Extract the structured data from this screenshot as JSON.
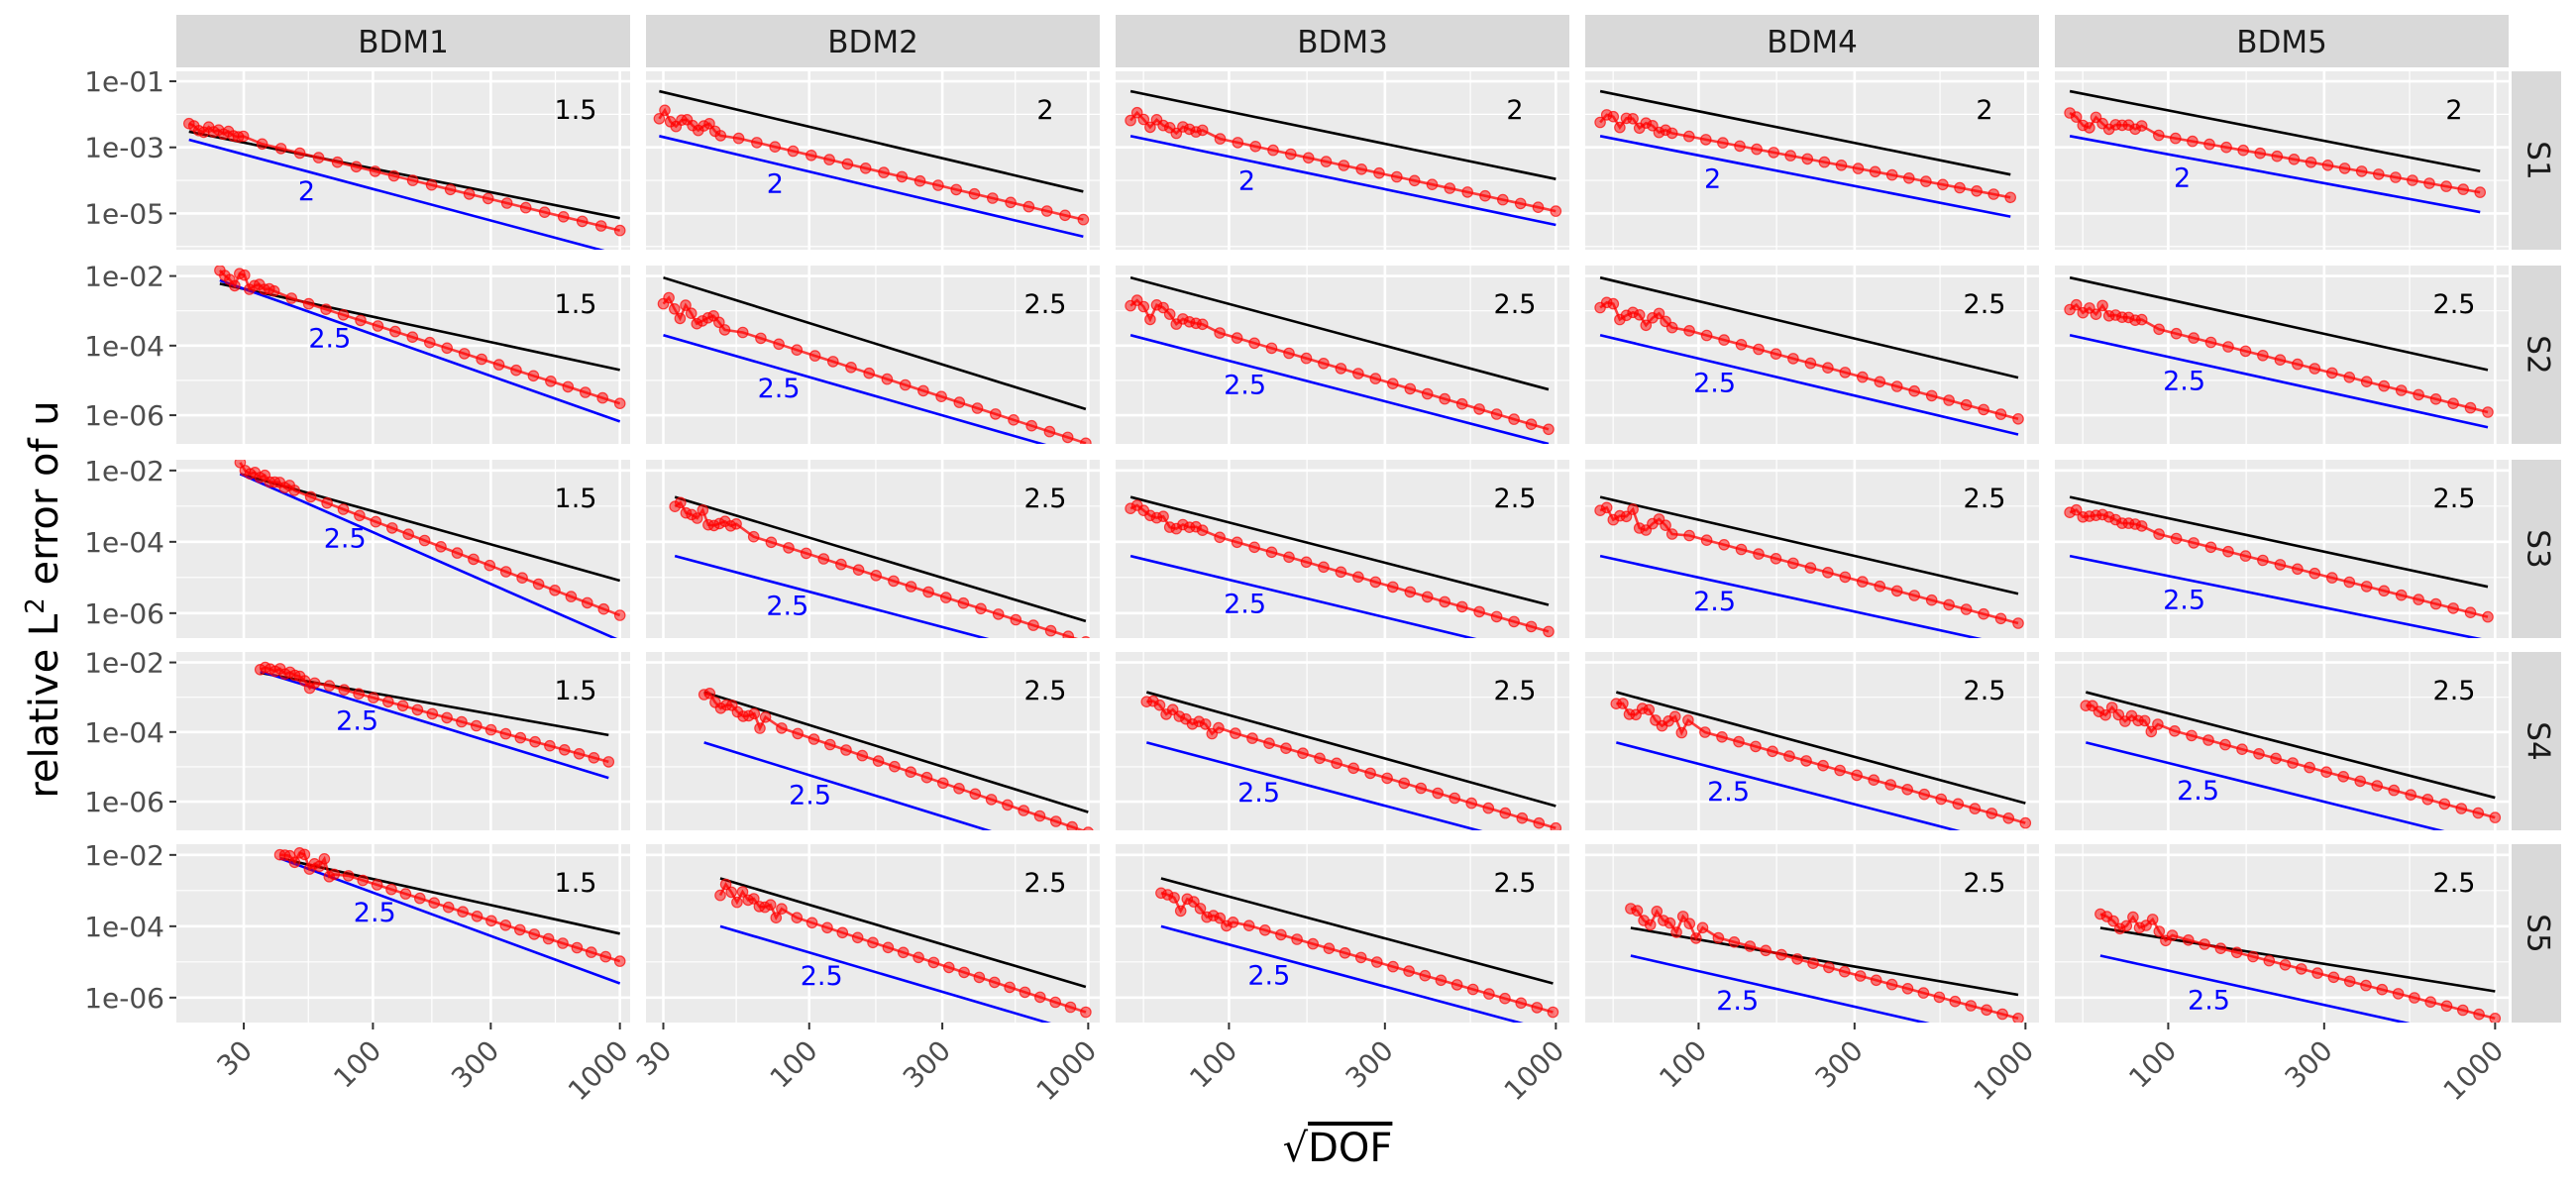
{
  "chart_data": {
    "type": "line",
    "layout": "facet_grid",
    "x_scale": "log10",
    "y_scale": "log10",
    "xlabel_parts": {
      "radical": "√",
      "text": "DOF"
    },
    "ylabel_parts": {
      "before": "relative L",
      "sup": "2",
      "after": " error of u"
    },
    "col_strips": [
      "BDM1",
      "BDM2",
      "BDM3",
      "BDM4",
      "BDM5"
    ],
    "row_strips": [
      "S1",
      "S2",
      "S3",
      "S4",
      "S5"
    ],
    "x_ticks": [
      {
        "value": 30,
        "label": "30"
      },
      {
        "value": 100,
        "label": "100"
      },
      {
        "value": 300,
        "label": "300"
      },
      {
        "value": 1000,
        "label": "1000"
      }
    ],
    "x_ranges_by_col": [
      [
        16,
        1100
      ],
      [
        26,
        1100
      ],
      [
        45,
        1100
      ],
      [
        45,
        1100
      ],
      [
        45,
        1100
      ]
    ],
    "y_ticks_by_row": [
      [
        {
          "value": 0.1,
          "label": "1e-01"
        },
        {
          "value": 0.001,
          "label": "1e-03"
        },
        {
          "value": 1e-05,
          "label": "1e-05"
        }
      ],
      [
        {
          "value": 0.01,
          "label": "1e-02"
        },
        {
          "value": 0.0001,
          "label": "1e-04"
        },
        {
          "value": 1e-06,
          "label": "1e-06"
        }
      ],
      [
        {
          "value": 0.01,
          "label": "1e-02"
        },
        {
          "value": 0.0001,
          "label": "1e-04"
        },
        {
          "value": 1e-06,
          "label": "1e-06"
        }
      ],
      [
        {
          "value": 0.01,
          "label": "1e-02"
        },
        {
          "value": 0.0001,
          "label": "1e-04"
        },
        {
          "value": 1e-06,
          "label": "1e-06"
        }
      ],
      [
        {
          "value": 0.01,
          "label": "1e-02"
        },
        {
          "value": 0.0001,
          "label": "1e-04"
        },
        {
          "value": 1e-06,
          "label": "1e-06"
        }
      ]
    ],
    "y_ranges_by_row": [
      [
        8e-07,
        0.2
      ],
      [
        1.5e-07,
        0.02
      ],
      [
        2e-07,
        0.02
      ],
      [
        1.5e-07,
        0.02
      ],
      [
        2e-07,
        0.02
      ]
    ],
    "series": [
      {
        "name": "relative L2 error of u",
        "color": "#ff0000",
        "marker": "circle",
        "alpha": 0.55
      },
      {
        "name": "reference slope (upper)",
        "color": "#000000"
      },
      {
        "name": "reference slope (lower)",
        "color": "#0000ff"
      }
    ],
    "panels": [
      {
        "row": 0,
        "col": 0,
        "error": {
          "x_start": 18,
          "x_end": 1000,
          "y_start": 0.005,
          "y_end": 3.5e-06
        },
        "ref_upper": {
          "x_start": 18,
          "x_end": 1000,
          "y_start": 0.003,
          "y_end": 7.2e-06,
          "label": "1.5"
        },
        "ref_lower": {
          "x_start": 18,
          "x_end": 1000,
          "y_start": 0.0017,
          "y_end": 5.5e-07,
          "label": "2"
        }
      },
      {
        "row": 0,
        "col": 1,
        "error": {
          "x_start": 29,
          "x_end": 960,
          "y_start": 0.008,
          "y_end": 7.5e-06
        },
        "ref_upper": {
          "x_start": 29,
          "x_end": 960,
          "y_start": 0.05,
          "y_end": 4.6e-05,
          "label": "2"
        },
        "ref_lower": {
          "x_start": 29,
          "x_end": 960,
          "y_start": 0.0022,
          "y_end": 2e-06,
          "label": "2"
        }
      },
      {
        "row": 0,
        "col": 2,
        "error": {
          "x_start": 50,
          "x_end": 1000,
          "y_start": 0.008,
          "y_end": 1.35e-05
        },
        "ref_upper": {
          "x_start": 50,
          "x_end": 1000,
          "y_start": 0.05,
          "y_end": 0.00011,
          "label": "2"
        },
        "ref_lower": {
          "x_start": 50,
          "x_end": 1000,
          "y_start": 0.0022,
          "y_end": 4.5e-06,
          "label": "2"
        }
      },
      {
        "row": 0,
        "col": 3,
        "error": {
          "x_start": 50,
          "x_end": 900,
          "y_start": 0.008,
          "y_end": 3.5e-05
        },
        "ref_upper": {
          "x_start": 50,
          "x_end": 900,
          "y_start": 0.05,
          "y_end": 0.00015,
          "label": "2"
        },
        "ref_lower": {
          "x_start": 50,
          "x_end": 900,
          "y_start": 0.0022,
          "y_end": 8e-06,
          "label": "2"
        }
      },
      {
        "row": 0,
        "col": 4,
        "error": {
          "x_start": 50,
          "x_end": 900,
          "y_start": 0.008,
          "y_end": 5e-05
        },
        "ref_upper": {
          "x_start": 50,
          "x_end": 900,
          "y_start": 0.05,
          "y_end": 0.00019,
          "label": "2"
        },
        "ref_lower": {
          "x_start": 50,
          "x_end": 900,
          "y_start": 0.0022,
          "y_end": 1.1e-05,
          "label": "2"
        }
      },
      {
        "row": 1,
        "col": 0,
        "error": {
          "x_start": 24,
          "x_end": 1000,
          "y_start": 0.012,
          "y_end": 2.5e-06
        },
        "ref_upper": {
          "x_start": 24,
          "x_end": 1000,
          "y_start": 0.006,
          "y_end": 2e-05,
          "label": "1.5"
        },
        "ref_lower": {
          "x_start": 24,
          "x_end": 1000,
          "y_start": 0.0075,
          "y_end": 6.6e-07,
          "label": "2.5"
        }
      },
      {
        "row": 1,
        "col": 1,
        "error": {
          "x_start": 30,
          "x_end": 980,
          "y_start": 0.0015,
          "y_end": 1.8e-07
        },
        "ref_upper": {
          "x_start": 30,
          "x_end": 980,
          "y_start": 0.009,
          "y_end": 1.5e-06,
          "label": "2.5"
        },
        "ref_lower": {
          "x_start": 30,
          "x_end": 980,
          "y_start": 0.0002,
          "y_end": 6.5e-08,
          "label": "2.5"
        }
      },
      {
        "row": 1,
        "col": 2,
        "error": {
          "x_start": 50,
          "x_end": 950,
          "y_start": 0.0015,
          "y_end": 4.5e-07
        },
        "ref_upper": {
          "x_start": 50,
          "x_end": 950,
          "y_start": 0.009,
          "y_end": 5.5e-06,
          "label": "2.5"
        },
        "ref_lower": {
          "x_start": 50,
          "x_end": 950,
          "y_start": 0.0002,
          "y_end": 1.5e-07,
          "label": "2.5"
        }
      },
      {
        "row": 1,
        "col": 3,
        "error": {
          "x_start": 50,
          "x_end": 950,
          "y_start": 0.0015,
          "y_end": 9e-07
        },
        "ref_upper": {
          "x_start": 50,
          "x_end": 950,
          "y_start": 0.009,
          "y_end": 1.2e-05,
          "label": "2.5"
        },
        "ref_lower": {
          "x_start": 50,
          "x_end": 950,
          "y_start": 0.0002,
          "y_end": 2.8e-07,
          "label": "2.5"
        }
      },
      {
        "row": 1,
        "col": 4,
        "error": {
          "x_start": 50,
          "x_end": 950,
          "y_start": 0.0015,
          "y_end": 1.4e-06
        },
        "ref_upper": {
          "x_start": 50,
          "x_end": 950,
          "y_start": 0.009,
          "y_end": 2e-05,
          "label": "2.5"
        },
        "ref_lower": {
          "x_start": 50,
          "x_end": 950,
          "y_start": 0.0002,
          "y_end": 4.5e-07,
          "label": "2.5"
        }
      },
      {
        "row": 2,
        "col": 0,
        "error": {
          "x_start": 29,
          "x_end": 1000,
          "y_start": 0.012,
          "y_end": 1e-06
        },
        "ref_upper": {
          "x_start": 29,
          "x_end": 1000,
          "y_start": 0.008,
          "y_end": 8.2e-06,
          "label": "1.5"
        },
        "ref_lower": {
          "x_start": 29,
          "x_end": 1000,
          "y_start": 0.008,
          "y_end": 1.7e-07,
          "label": "2.5"
        }
      },
      {
        "row": 2,
        "col": 1,
        "error": {
          "x_start": 33,
          "x_end": 980,
          "y_start": 0.0008,
          "y_end": 1.8e-07
        },
        "ref_upper": {
          "x_start": 33,
          "x_end": 980,
          "y_start": 0.0018,
          "y_end": 6e-07,
          "label": "2.5"
        },
        "ref_lower": {
          "x_start": 33,
          "x_end": 980,
          "y_start": 4e-05,
          "y_end": 3.5e-08,
          "label": "2.5"
        }
      },
      {
        "row": 2,
        "col": 2,
        "error": {
          "x_start": 50,
          "x_end": 950,
          "y_start": 0.0008,
          "y_end": 3.5e-07
        },
        "ref_upper": {
          "x_start": 50,
          "x_end": 950,
          "y_start": 0.0018,
          "y_end": 1.7e-06,
          "label": "2.5"
        },
        "ref_lower": {
          "x_start": 50,
          "x_end": 950,
          "y_start": 4e-05,
          "y_end": 6e-08,
          "label": "2.5"
        }
      },
      {
        "row": 2,
        "col": 3,
        "error": {
          "x_start": 50,
          "x_end": 950,
          "y_start": 0.0008,
          "y_end": 6e-07
        },
        "ref_upper": {
          "x_start": 50,
          "x_end": 950,
          "y_start": 0.0018,
          "y_end": 3.5e-06,
          "label": "2.5"
        },
        "ref_lower": {
          "x_start": 50,
          "x_end": 950,
          "y_start": 4e-05,
          "y_end": 1.1e-07,
          "label": "2.5"
        }
      },
      {
        "row": 2,
        "col": 4,
        "error": {
          "x_start": 50,
          "x_end": 950,
          "y_start": 0.0008,
          "y_end": 9e-07
        },
        "ref_upper": {
          "x_start": 50,
          "x_end": 950,
          "y_start": 0.0018,
          "y_end": 5.5e-06,
          "label": "2.5"
        },
        "ref_lower": {
          "x_start": 50,
          "x_end": 950,
          "y_start": 4e-05,
          "y_end": 1.7e-07,
          "label": "2.5"
        }
      },
      {
        "row": 3,
        "col": 0,
        "error": {
          "x_start": 35,
          "x_end": 900,
          "y_start": 0.0085,
          "y_end": 1.6e-05
        },
        "ref_upper": {
          "x_start": 35,
          "x_end": 900,
          "y_start": 0.005,
          "y_end": 8.2e-05,
          "label": "1.5"
        },
        "ref_lower": {
          "x_start": 35,
          "x_end": 900,
          "y_start": 0.0055,
          "y_end": 4.8e-06,
          "label": "2.5"
        }
      },
      {
        "row": 3,
        "col": 1,
        "error": {
          "x_start": 42,
          "x_end": 1000,
          "y_start": 0.00085,
          "y_end": 1.5e-07
        },
        "ref_upper": {
          "x_start": 42,
          "x_end": 1000,
          "y_start": 0.0014,
          "y_end": 5e-07,
          "label": "2.5"
        },
        "ref_lower": {
          "x_start": 42,
          "x_end": 1000,
          "y_start": 5e-05,
          "y_end": 1.9e-08,
          "label": "2.5"
        }
      },
      {
        "row": 3,
        "col": 2,
        "error": {
          "x_start": 56,
          "x_end": 1000,
          "y_start": 0.0006,
          "y_end": 2e-07
        },
        "ref_upper": {
          "x_start": 56,
          "x_end": 1000,
          "y_start": 0.0014,
          "y_end": 7.5e-07,
          "label": "2.5"
        },
        "ref_lower": {
          "x_start": 56,
          "x_end": 1000,
          "y_start": 5e-05,
          "y_end": 3.8e-08,
          "label": "2.5"
        }
      },
      {
        "row": 3,
        "col": 3,
        "error": {
          "x_start": 56,
          "x_end": 1000,
          "y_start": 0.0006,
          "y_end": 2.8e-07
        },
        "ref_upper": {
          "x_start": 56,
          "x_end": 1000,
          "y_start": 0.0014,
          "y_end": 9e-07,
          "label": "2.5"
        },
        "ref_lower": {
          "x_start": 56,
          "x_end": 1000,
          "y_start": 5e-05,
          "y_end": 4.5e-08,
          "label": "2.5"
        }
      },
      {
        "row": 3,
        "col": 4,
        "error": {
          "x_start": 56,
          "x_end": 1000,
          "y_start": 0.0006,
          "y_end": 4e-07
        },
        "ref_upper": {
          "x_start": 56,
          "x_end": 1000,
          "y_start": 0.0014,
          "y_end": 1.3e-06,
          "label": "2.5"
        },
        "ref_lower": {
          "x_start": 56,
          "x_end": 1000,
          "y_start": 5e-05,
          "y_end": 6e-08,
          "label": "2.5"
        }
      },
      {
        "row": 4,
        "col": 0,
        "error": {
          "x_start": 42,
          "x_end": 1000,
          "y_start": 0.012,
          "y_end": 1.2e-05
        },
        "ref_upper": {
          "x_start": 42,
          "x_end": 1000,
          "y_start": 0.008,
          "y_end": 6.2e-05,
          "label": "1.5"
        },
        "ref_lower": {
          "x_start": 42,
          "x_end": 1000,
          "y_start": 0.008,
          "y_end": 2.5e-06,
          "label": "2.5"
        }
      },
      {
        "row": 4,
        "col": 1,
        "error": {
          "x_start": 48,
          "x_end": 980,
          "y_start": 0.001,
          "y_end": 4.5e-07
        },
        "ref_upper": {
          "x_start": 48,
          "x_end": 980,
          "y_start": 0.0022,
          "y_end": 2e-06,
          "label": "2.5"
        },
        "ref_lower": {
          "x_start": 48,
          "x_end": 980,
          "y_start": 0.0001,
          "y_end": 9.5e-08,
          "label": "2.5"
        }
      },
      {
        "row": 4,
        "col": 2,
        "error": {
          "x_start": 62,
          "x_end": 980,
          "y_start": 0.0006,
          "y_end": 4.5e-07
        },
        "ref_upper": {
          "x_start": 62,
          "x_end": 980,
          "y_start": 0.0022,
          "y_end": 2.5e-06,
          "label": "2.5"
        },
        "ref_lower": {
          "x_start": 62,
          "x_end": 980,
          "y_start": 0.0001,
          "y_end": 1.1e-07,
          "label": "2.5"
        }
      },
      {
        "row": 4,
        "col": 3,
        "error": {
          "x_start": 62,
          "x_end": 950,
          "y_start": 0.00025,
          "y_end": 3e-07
        },
        "ref_upper": {
          "x_start": 62,
          "x_end": 950,
          "y_start": 9e-05,
          "y_end": 1.2e-06,
          "label": "2.5"
        },
        "ref_lower": {
          "x_start": 62,
          "x_end": 950,
          "y_start": 1.5e-05,
          "y_end": 5e-08,
          "label": "2.5"
        }
      },
      {
        "row": 4,
        "col": 4,
        "error": {
          "x_start": 62,
          "x_end": 1000,
          "y_start": 0.0002,
          "y_end": 3e-07
        },
        "ref_upper": {
          "x_start": 62,
          "x_end": 1000,
          "y_start": 9e-05,
          "y_end": 1.5e-06,
          "label": "2.5"
        },
        "ref_lower": {
          "x_start": 62,
          "x_end": 1000,
          "y_start": 1.5e-05,
          "y_end": 5.5e-08,
          "label": "2.5"
        }
      }
    ]
  }
}
